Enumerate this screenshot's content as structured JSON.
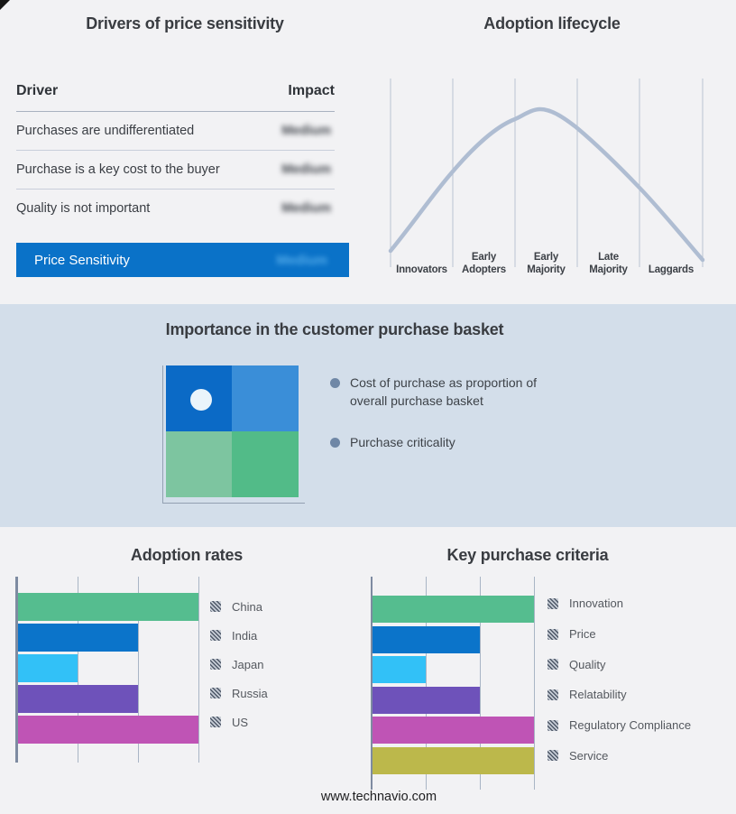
{
  "page": {
    "background": "#f2f2f4",
    "band_background": "#d3deea",
    "accent_blue": "#0a72c8"
  },
  "drivers": {
    "title": "Drivers of price sensitivity",
    "columns": {
      "driver": "Driver",
      "impact": "Impact"
    },
    "rows": [
      {
        "driver": "Purchases are undifferentiated",
        "impact": "Medium"
      },
      {
        "driver": "Purchase is a key cost to the buyer",
        "impact": "Medium"
      },
      {
        "driver": "Quality is not important",
        "impact": "Medium"
      }
    ],
    "highlight": {
      "driver": "Price Sensitivity",
      "impact": "Medium",
      "bar_color": "#0a72c8"
    },
    "impact_blurred": true
  },
  "lifecycle": {
    "title": "Adoption lifecycle",
    "stages": [
      "Innovators",
      "Early\nAdopters",
      "Early\nMajority",
      "Late\nMajority",
      "Laggards"
    ],
    "curve_color": "#afbdd2",
    "gridline_color": "#b9c4d2"
  },
  "basket": {
    "title": "Importance in the customer purchase basket",
    "bullets": [
      "Cost of purchase as proportion of overall purchase basket",
      "Purchase criticality"
    ],
    "quadrant": {
      "top_left": "#0b6ac6",
      "top_right": "#3a8ed8",
      "bottom_left": "#7dc5a0",
      "bottom_right": "#52bb88",
      "dot": "#eaf4fb"
    }
  },
  "adoption_rates": {
    "title": "Adoption rates",
    "items": [
      {
        "label": "China",
        "value": 3,
        "color": "#55bd8f"
      },
      {
        "label": "India",
        "value": 2,
        "color": "#0b74ca"
      },
      {
        "label": "Japan",
        "value": 1,
        "color": "#32c1f7"
      },
      {
        "label": "Russia",
        "value": 2,
        "color": "#6e52ba"
      },
      {
        "label": "US",
        "value": 3,
        "color": "#bf54b5"
      }
    ]
  },
  "purchase_criteria": {
    "title": "Key purchase criteria",
    "items": [
      {
        "label": "Innovation",
        "value": 3,
        "color": "#55bd8f"
      },
      {
        "label": "Price",
        "value": 2,
        "color": "#0b74ca"
      },
      {
        "label": "Quality",
        "value": 1,
        "color": "#32c1f7"
      },
      {
        "label": "Relatability",
        "value": 2,
        "color": "#6e52ba"
      },
      {
        "label": "Regulatory Compliance",
        "value": 3,
        "color": "#bf54b5"
      },
      {
        "label": "Service",
        "value": 3,
        "color": "#bcb84b"
      }
    ]
  },
  "footer": {
    "url": "www.technavio.com"
  },
  "chart_data": [
    {
      "type": "line",
      "title": "Adoption lifecycle",
      "categories": [
        "Innovators",
        "Early Adopters",
        "Early Majority",
        "Late Majority",
        "Laggards"
      ],
      "shape": "bell-curve",
      "peak_stage": "Early Majority",
      "normalized_height_at_gridlines": [
        0.07,
        0.48,
        0.78,
        0.73,
        0.41,
        0.03
      ],
      "legend_position": "none",
      "grid": "vertical"
    },
    {
      "type": "bar",
      "title": "Adoption rates",
      "orientation": "horizontal",
      "categories": [
        "China",
        "India",
        "Japan",
        "Russia",
        "US"
      ],
      "values": [
        3,
        2,
        1,
        2,
        3
      ],
      "xlabel": "",
      "ylabel": "",
      "xlim": [
        0,
        3
      ],
      "grid": "vertical",
      "legend_position": "right"
    },
    {
      "type": "bar",
      "title": "Key purchase criteria",
      "orientation": "horizontal",
      "categories": [
        "Innovation",
        "Price",
        "Quality",
        "Relatability",
        "Regulatory Compliance",
        "Service"
      ],
      "values": [
        3,
        2,
        1,
        2,
        3,
        3
      ],
      "xlabel": "",
      "ylabel": "",
      "xlim": [
        0,
        3
      ],
      "grid": "vertical",
      "legend_position": "right"
    }
  ]
}
